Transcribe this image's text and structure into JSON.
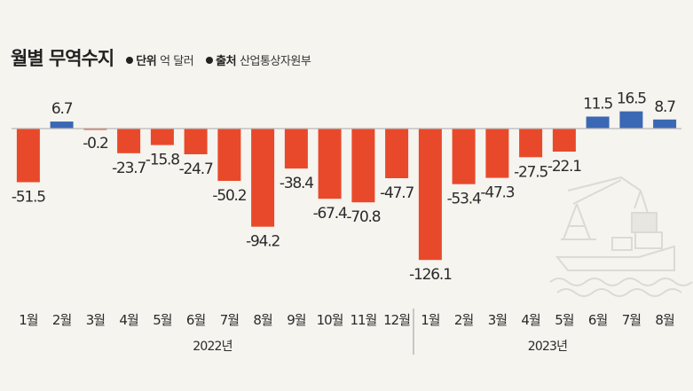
{
  "header": {
    "title": "월별 무역수지",
    "unit_key": "단위",
    "unit_value": "억 달러",
    "source_key": "출처",
    "source_value": "산업통상자원부"
  },
  "colors": {
    "negative": "#e9492b",
    "positive": "#3a68b4",
    "baseline": "#b8b8b8",
    "text": "#2a2a2a",
    "background": "#f6f4ef"
  },
  "chart_data": {
    "type": "bar",
    "title": "월별 무역수지",
    "xlabel": "",
    "ylabel": "",
    "grid": false,
    "categories": [
      "1월",
      "2월",
      "3월",
      "4월",
      "5월",
      "6월",
      "7월",
      "8월",
      "9월",
      "10월",
      "11월",
      "12월",
      "1월",
      "2월",
      "3월",
      "4월",
      "5월",
      "6월",
      "7월",
      "8월"
    ],
    "values": [
      -51.5,
      6.7,
      -0.2,
      -23.7,
      -15.8,
      -24.7,
      -50.2,
      -94.2,
      -38.4,
      -67.4,
      -70.8,
      -47.7,
      -126.1,
      -53.4,
      -47.3,
      -27.5,
      -22.1,
      11.5,
      16.5,
      8.7
    ],
    "value_labels": [
      "-51.5",
      "6.7",
      "-0.2",
      "-23.7",
      "-15.8",
      "-24.7",
      "-50.2",
      "-94.2",
      "-38.4",
      "-67.4",
      "-70.8",
      "-47.7",
      "-126.1",
      "-53.4",
      "-47.3",
      "-27.5",
      "-22.1",
      "11.5",
      "16.5",
      "8.7"
    ],
    "groups": [
      {
        "label": "2022년",
        "start": 0,
        "end": 11
      },
      {
        "label": "2023년",
        "start": 12,
        "end": 19
      }
    ],
    "ylim": [
      -126.1,
      16.5
    ]
  }
}
